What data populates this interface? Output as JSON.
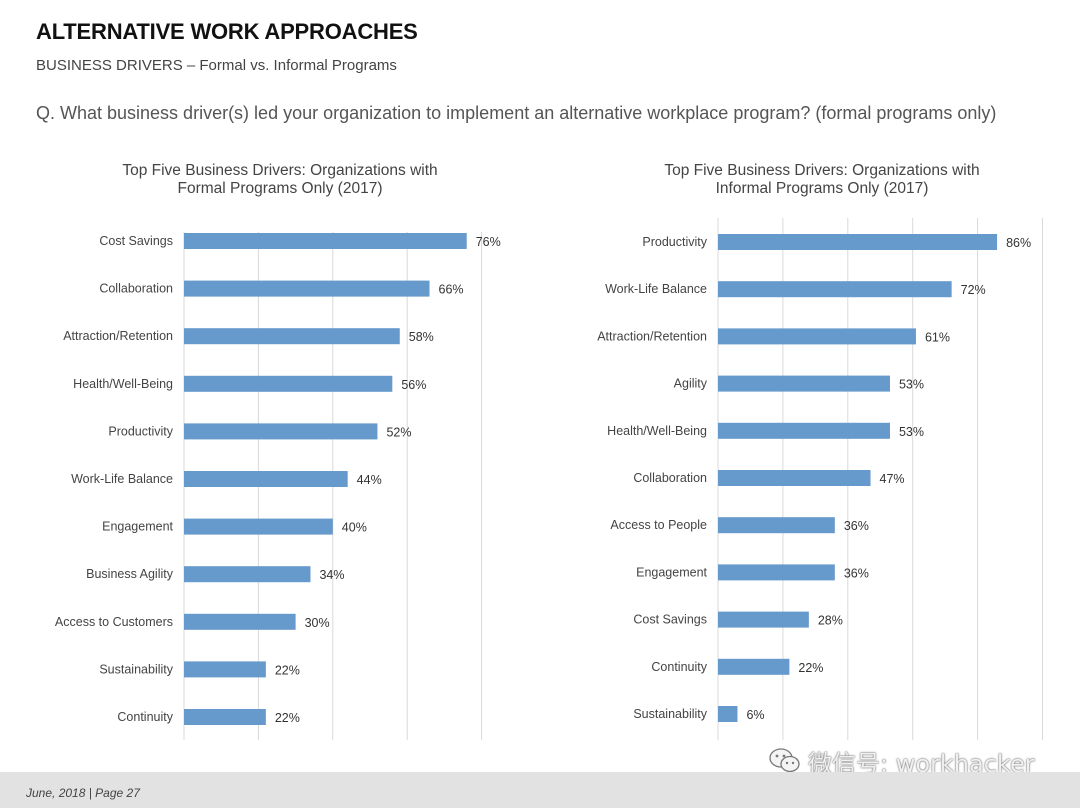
{
  "header": {
    "title": "ALTERNATIVE WORK APPROACHES",
    "subtitle": "BUSINESS DRIVERS – Formal vs. Informal Programs",
    "question": "Q. What business driver(s) led your organization to implement an alternative workplace program? (formal programs only)"
  },
  "chart_data": [
    {
      "type": "bar",
      "orientation": "horizontal",
      "title_line1": "Top Five Business Drivers: Organizations with",
      "title_line2": "Formal Programs Only (2017)",
      "categories": [
        "Cost Savings",
        "Collaboration",
        "Attraction/Retention",
        "Health/Well-Being",
        "Productivity",
        "Work-Life Balance",
        "Engagement",
        "Business Agility",
        "Access to Customers",
        "Sustainability",
        "Continuity"
      ],
      "values": [
        76,
        66,
        58,
        56,
        52,
        44,
        40,
        34,
        30,
        22,
        22
      ],
      "value_labels": [
        "76%",
        "66%",
        "58%",
        "56%",
        "52%",
        "44%",
        "40%",
        "34%",
        "30%",
        "22%",
        "22%"
      ],
      "xlim": [
        0,
        80
      ],
      "grid": true,
      "bar_color": "#6699cc"
    },
    {
      "type": "bar",
      "orientation": "horizontal",
      "title_line1": "Top Five Business Drivers: Organizations with",
      "title_line2": "Informal Programs Only (2017)",
      "categories": [
        "Productivity",
        "Work-Life Balance",
        "Attraction/Retention",
        "Agility",
        "Health/Well-Being",
        "Collaboration",
        "Access to People",
        "Engagement",
        "Cost Savings",
        "Continuity",
        "Sustainability"
      ],
      "values": [
        86,
        72,
        61,
        53,
        53,
        47,
        36,
        36,
        28,
        22,
        6
      ],
      "value_labels": [
        "86%",
        "72%",
        "61%",
        "53%",
        "53%",
        "47%",
        "36%",
        "36%",
        "28%",
        "22%",
        "6%"
      ],
      "xlim": [
        0,
        100
      ],
      "grid": true,
      "bar_color": "#6699cc"
    }
  ],
  "footer": {
    "page_info": "June, 2018  |  Page 27",
    "watermark": "微信号: workhacker"
  }
}
